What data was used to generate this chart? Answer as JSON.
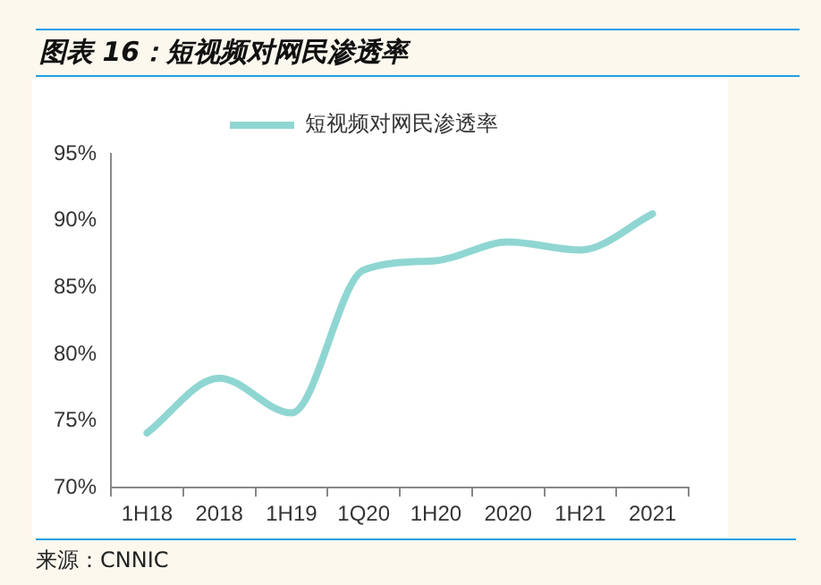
{
  "chart_data": {
    "type": "line",
    "title": "图表 16：短视频对网民渗透率",
    "categories": [
      "1H18",
      "2018",
      "1H19",
      "1Q20",
      "1H20",
      "2020",
      "1H21",
      "2021"
    ],
    "series": [
      {
        "name": "短视频对网民渗透率",
        "color": "#8fd6d2",
        "values": [
          74.1,
          78.2,
          75.6,
          86.3,
          87.0,
          88.4,
          87.8,
          90.5
        ]
      }
    ],
    "ylim": [
      70,
      95
    ],
    "yticks": [
      {
        "value": 70,
        "label": "70%"
      },
      {
        "value": 75,
        "label": "75%"
      },
      {
        "value": 80,
        "label": "80%"
      },
      {
        "value": 85,
        "label": "85%"
      },
      {
        "value": 90,
        "label": "90%"
      },
      {
        "value": 95,
        "label": "95%"
      }
    ],
    "grid": false,
    "legend": "top",
    "marker": "none",
    "line_style": "solid",
    "annotations": [
      "来源：CNNIC"
    ]
  }
}
